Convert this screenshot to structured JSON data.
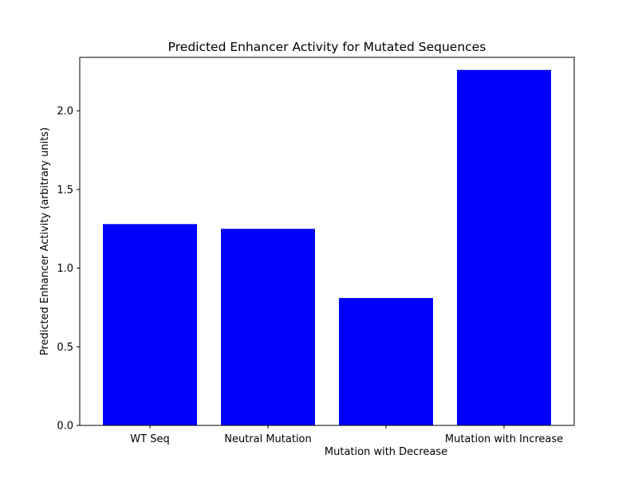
{
  "chart_data": {
    "type": "bar",
    "title": "Predicted Enhancer Activity for Mutated Sequences",
    "xlabel": "Mutation with Decrease",
    "ylabel": "Predicted Enhancer Activity (arbitrary units)",
    "categories": [
      "WT Seq",
      "Neutral Mutation",
      "",
      "Mutation with Increase"
    ],
    "values": [
      1.28,
      1.25,
      0.81,
      2.26
    ],
    "ylim": [
      0,
      2.34
    ],
    "yticks": [
      "0.0",
      "0.5",
      "1.0",
      "1.5",
      "2.0"
    ],
    "grid": false,
    "bar_color": "#0000ff"
  }
}
